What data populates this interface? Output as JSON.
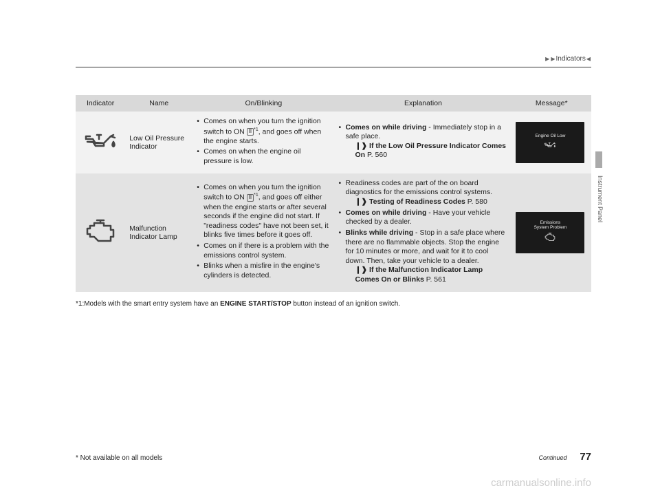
{
  "breadcrumb": {
    "chev": "▶",
    "label": "Indicators",
    "tail": "◀"
  },
  "sideTab": "Instrument Panel",
  "table": {
    "headers": {
      "indicator": "Indicator",
      "name": "Name",
      "onblink": "On/Blinking",
      "explain": "Explanation",
      "message": "Message*"
    },
    "rows": [
      {
        "name": "Low Oil Pressure Indicator",
        "on_items": [
          {
            "pre": "Comes on when you turn the ignition switch to ON ",
            "key": "II",
            "sup": "*1",
            "post": ", and goes off when the engine starts."
          },
          {
            "text": "Comes on when the engine oil pressure is low."
          }
        ],
        "exp_items": [
          {
            "bold": "Comes on while driving",
            "rest": " - Immediately stop in a safe place.",
            "sub": {
              "bold": "If the Low Oil Pressure Indicator Comes On",
              "page": "P. 560"
            }
          }
        ],
        "msg": "Engine Oil Low",
        "icon": "oil"
      },
      {
        "name": "Malfunction Indicator Lamp",
        "on_items": [
          {
            "pre": "Comes on when you turn the ignition switch to ON ",
            "key": "II",
            "sup": "*1",
            "post": ", and goes off either when the engine starts or after several seconds if the engine did not start. If \"readiness codes\" have not been set, it blinks five times before it goes off."
          },
          {
            "text": "Comes on if there is a problem with the emissions control system."
          },
          {
            "text": "Blinks when a misfire in the engine's cylinders is detected."
          }
        ],
        "exp_items": [
          {
            "text": "Readiness codes are part of the on board diagnostics for the emissions control systems.",
            "sub": {
              "bold": "Testing of Readiness Codes",
              "page": "P. 580"
            }
          },
          {
            "bold": "Comes on while driving",
            "rest": " - Have your vehicle checked by a dealer."
          },
          {
            "bold": "Blinks while driving",
            "rest": " - Stop in a safe place where there are no flammable objects. Stop the engine for 10 minutes or more, and wait for it to cool down. Then, take your vehicle to a dealer.",
            "sub": {
              "bold": "If the Malfunction Indicator Lamp Comes On or Blinks",
              "page": "P. 561"
            }
          }
        ],
        "msg": "Emissions\nSystem Problem",
        "icon": "engine"
      }
    ]
  },
  "footnote1": "*1:Models with the smart entry system have an ",
  "footnote1_bold": "ENGINE START/STOP",
  "footnote1_end": " button instead of an ignition switch.",
  "footnote2": "* Not available on all models",
  "continued": "Continued",
  "pageNum": "77",
  "watermark": "carmanualsonline.info",
  "colors": {
    "header_bg": "#d9d9d9",
    "row_light": "#f2f2f2",
    "row_dark": "#e3e3e3"
  }
}
